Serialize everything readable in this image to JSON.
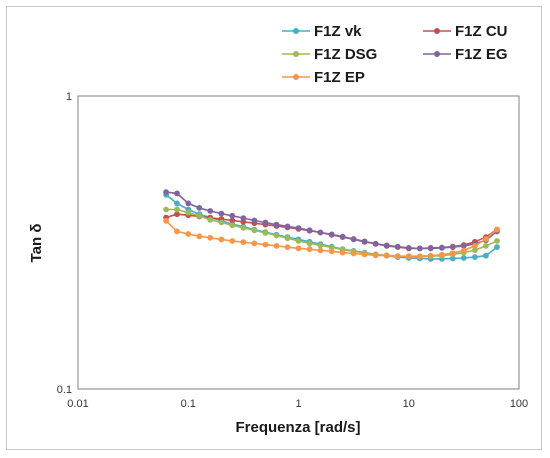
{
  "chart_data": {
    "type": "line",
    "xlabel": "Frequenza [rad/s]",
    "ylabel": "Tan δ",
    "xscale": "log",
    "yscale": "log",
    "xlim": [
      0.01,
      100
    ],
    "ylim": [
      0.1,
      1
    ],
    "x_ticks": [
      "0.01",
      "0.1",
      "1",
      "10",
      "100"
    ],
    "y_ticks": [
      "1",
      "0.1"
    ],
    "grid": false,
    "legend_position": "top-right",
    "x": [
      0.063,
      0.079,
      0.1,
      0.126,
      0.158,
      0.2,
      0.251,
      0.316,
      0.398,
      0.501,
      0.631,
      0.794,
      1.0,
      1.26,
      1.58,
      2.0,
      2.51,
      3.16,
      3.98,
      5.01,
      6.31,
      7.94,
      10.0,
      12.6,
      15.8,
      20.0,
      25.1,
      31.6,
      39.8,
      50.1,
      63.1
    ],
    "series": [
      {
        "name": "F1Z vk",
        "color": "#4bacc6",
        "values": [
          0.46,
          0.43,
          0.41,
          0.395,
          0.385,
          0.375,
          0.365,
          0.358,
          0.35,
          0.343,
          0.336,
          0.33,
          0.324,
          0.318,
          0.312,
          0.306,
          0.3,
          0.296,
          0.292,
          0.288,
          0.285,
          0.282,
          0.28,
          0.279,
          0.278,
          0.278,
          0.279,
          0.28,
          0.282,
          0.285,
          0.305
        ]
      },
      {
        "name": "F1Z CU",
        "color": "#c0504d",
        "values": [
          0.385,
          0.395,
          0.392,
          0.388,
          0.384,
          0.38,
          0.376,
          0.372,
          0.368,
          0.364,
          0.36,
          0.356,
          0.352,
          0.347,
          0.342,
          0.337,
          0.331,
          0.325,
          0.319,
          0.313,
          0.308,
          0.305,
          0.302,
          0.302,
          0.303,
          0.304,
          0.306,
          0.31,
          0.318,
          0.33,
          0.35
        ]
      },
      {
        "name": "F1Z DSG",
        "color": "#9bbb59",
        "values": [
          0.41,
          0.41,
          0.4,
          0.39,
          0.378,
          0.37,
          0.362,
          0.355,
          0.348,
          0.341,
          0.334,
          0.327,
          0.32,
          0.314,
          0.309,
          0.304,
          0.299,
          0.295,
          0.291,
          0.288,
          0.286,
          0.284,
          0.283,
          0.283,
          0.284,
          0.285,
          0.288,
          0.292,
          0.298,
          0.308,
          0.32
        ]
      },
      {
        "name": "F1Z EG",
        "color": "#8064a2",
        "values": [
          0.47,
          0.465,
          0.43,
          0.415,
          0.405,
          0.397,
          0.39,
          0.383,
          0.376,
          0.37,
          0.364,
          0.359,
          0.354,
          0.348,
          0.342,
          0.336,
          0.33,
          0.324,
          0.318,
          0.313,
          0.309,
          0.306,
          0.303,
          0.302,
          0.302,
          0.303,
          0.305,
          0.308,
          0.313,
          0.322,
          0.345
        ]
      },
      {
        "name": "F1Z EP",
        "color": "#f79646",
        "values": [
          0.375,
          0.345,
          0.338,
          0.332,
          0.328,
          0.324,
          0.32,
          0.317,
          0.314,
          0.311,
          0.308,
          0.305,
          0.302,
          0.3,
          0.297,
          0.295,
          0.292,
          0.29,
          0.288,
          0.286,
          0.285,
          0.284,
          0.284,
          0.284,
          0.285,
          0.287,
          0.291,
          0.297,
          0.308,
          0.325,
          0.35
        ]
      }
    ]
  }
}
